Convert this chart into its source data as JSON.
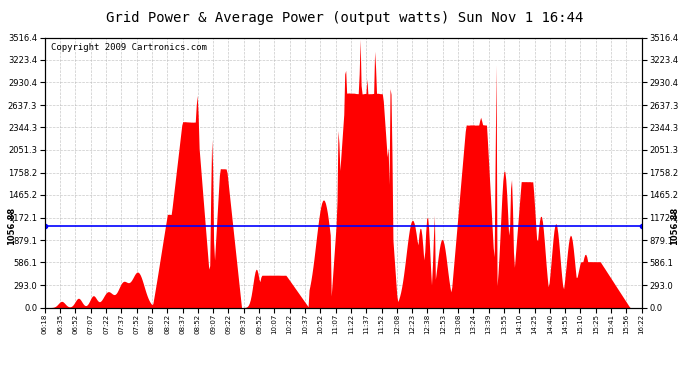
{
  "title": "Grid Power & Average Power (output watts) Sun Nov 1 16:44",
  "copyright": "Copyright 2009 Cartronics.com",
  "average_line": 1056.88,
  "y_max": 3516.4,
  "y_min": 0.0,
  "y_ticks": [
    0.0,
    293.0,
    586.1,
    879.1,
    1172.1,
    1465.2,
    1758.2,
    2051.3,
    2344.3,
    2637.3,
    2930.4,
    3223.4,
    3516.4
  ],
  "fill_color": "#FF0000",
  "avg_line_color": "#0000FF",
  "background_color": "#FFFFFF",
  "grid_color": "#BBBBBB",
  "title_fontsize": 10,
  "copyright_fontsize": 6.5,
  "x_labels": [
    "06:18",
    "06:35",
    "06:52",
    "07:07",
    "07:22",
    "07:37",
    "07:52",
    "08:07",
    "08:22",
    "08:37",
    "08:52",
    "09:07",
    "09:22",
    "09:37",
    "09:52",
    "10:07",
    "10:22",
    "10:37",
    "10:52",
    "11:07",
    "11:22",
    "11:37",
    "11:52",
    "12:08",
    "12:23",
    "12:38",
    "12:53",
    "13:08",
    "13:24",
    "13:39",
    "13:55",
    "14:10",
    "14:25",
    "14:40",
    "14:55",
    "15:10",
    "15:25",
    "15:41",
    "15:56",
    "16:22"
  ]
}
